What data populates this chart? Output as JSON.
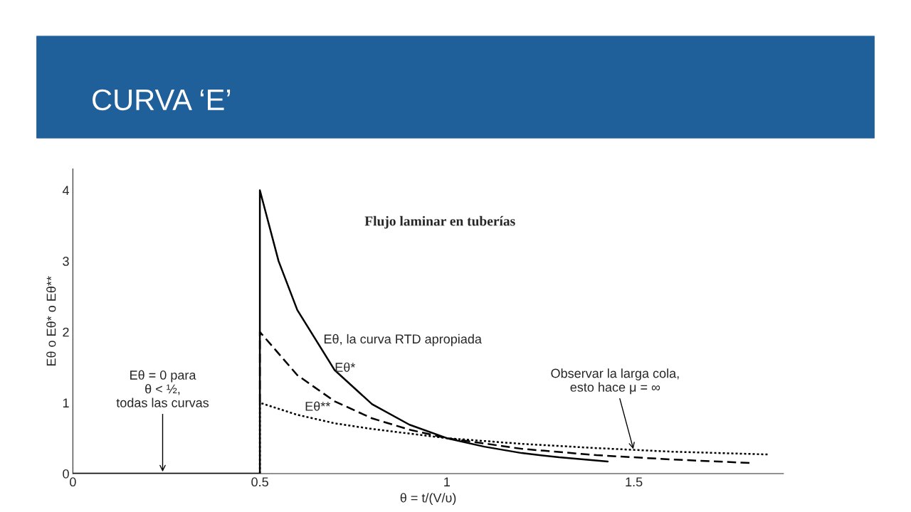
{
  "chart_data": {
    "type": "line",
    "title": "CURVA ‘E’",
    "xlabel": "θ = t/(V/υ)",
    "ylabel": "Eθ o Eθ* o Eθ**",
    "xlim": [
      0,
      1.9
    ],
    "ylim": [
      0,
      4.3
    ],
    "xticks": [
      0,
      0.5,
      1,
      1.5
    ],
    "yticks": [
      0,
      1,
      2,
      3,
      4
    ],
    "grid": false,
    "series": [
      {
        "color": "#000000",
        "line_style": "solid",
        "x": [
          0,
          0.5,
          0.5,
          0.55,
          0.6,
          0.7,
          0.8,
          0.9,
          1.0,
          1.1,
          1.2,
          1.3,
          1.43
        ],
        "values": [
          0,
          0,
          4,
          3.0,
          2.31,
          1.46,
          0.98,
          0.69,
          0.5,
          0.38,
          0.29,
          0.23,
          0.17
        ]
      },
      {
        "color": "#000000",
        "line_style": "dashed",
        "x": [
          0.5,
          0.5,
          0.6,
          0.7,
          0.8,
          0.9,
          1.0,
          1.2,
          1.4,
          1.6,
          1.81
        ],
        "values": [
          1,
          2,
          1.39,
          1.02,
          0.78,
          0.62,
          0.5,
          0.35,
          0.26,
          0.2,
          0.15
        ]
      },
      {
        "color": "#000000",
        "line_style": "dotted",
        "x": [
          0.5,
          0.5,
          0.6,
          0.7,
          0.8,
          1.0,
          1.2,
          1.4,
          1.6,
          1.86
        ],
        "values": [
          0,
          1,
          0.83,
          0.71,
          0.63,
          0.5,
          0.42,
          0.36,
          0.31,
          0.27
        ]
      }
    ],
    "annotations": [
      "Flujo laminar en tuberías",
      {
        "text": "Eθ, la curva RTD apropiada",
        "x": 0.65,
        "y": 1.82
      },
      {
        "text": "Eθ*",
        "x": 0.62,
        "y": 1.3
      },
      {
        "text": "Eθ**",
        "x": 0.56,
        "y": 0.9
      },
      {
        "text": "Eθ = 0 para\nθ < ½,\ntodas las curvas",
        "x": 0.24,
        "y": 0
      },
      {
        "text": "Observar la larga cola,\nesto hace μ = ∞",
        "x": 1.5,
        "y": 0.32
      }
    ]
  }
}
